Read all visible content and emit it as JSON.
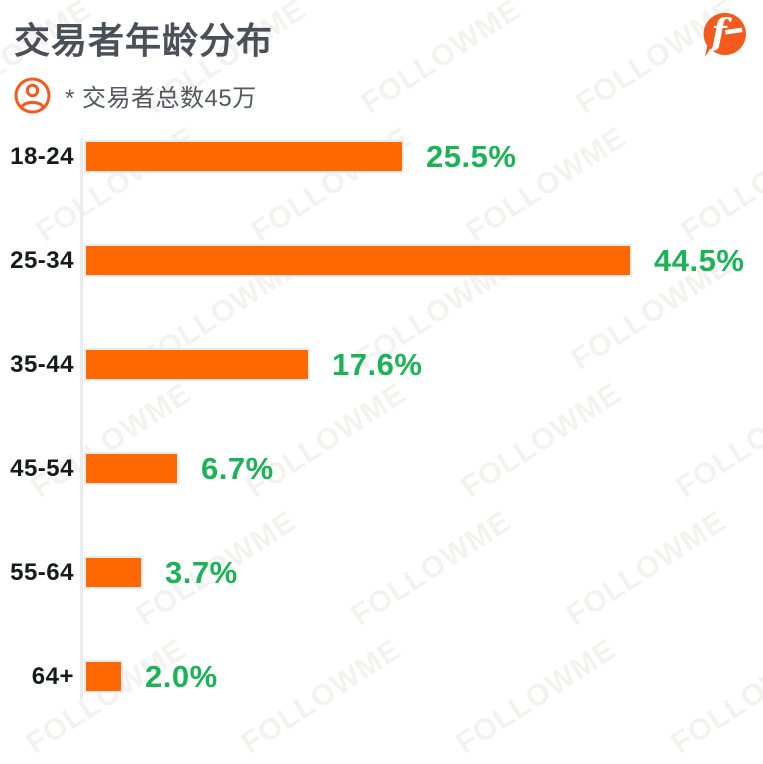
{
  "header": {
    "title": "交易者年龄分布",
    "note": "* 交易者总数45万"
  },
  "brand": {
    "name": "FOLLOWME",
    "logo_letter": "f"
  },
  "watermark": {
    "text": "FOLLOWME"
  },
  "colors": {
    "bar": "#FF6701",
    "bar_border": "#ECECEC",
    "percent": "#1BB358",
    "title": "#4A5057",
    "note": "#53585E",
    "category": "#17191C",
    "axis": "#ECECEC",
    "brand_orange": "#F4591D"
  },
  "icons": {
    "person": "person-in-circle-icon",
    "logo": "followme-logo"
  },
  "chart_data": {
    "type": "bar",
    "orientation": "horizontal",
    "title": "交易者年龄分布",
    "subtitle_note": "* 交易者总数45万",
    "categories": [
      "18-24",
      "25-34",
      "35-44",
      "45-54",
      "55-64",
      "64+"
    ],
    "values": [
      25.5,
      44.5,
      17.6,
      6.7,
      3.7,
      2.0
    ],
    "labels": [
      "25.5%",
      "44.5%",
      "17.6%",
      "6.7%",
      "3.7%",
      "2.0%"
    ],
    "unit": "%",
    "xlim": [
      0,
      45
    ],
    "grid": false,
    "legend": false,
    "value_label_position": "right-of-bar"
  }
}
